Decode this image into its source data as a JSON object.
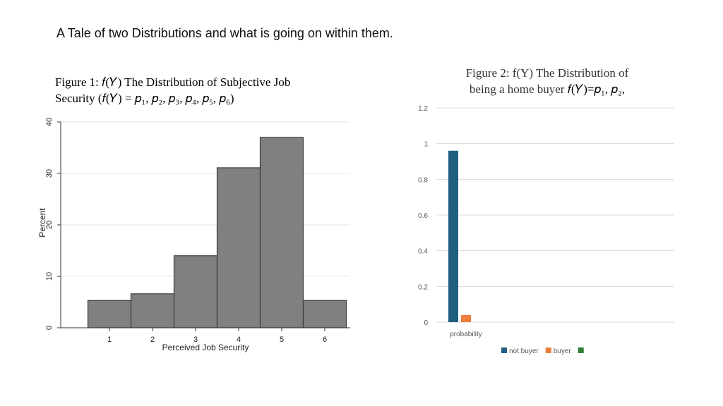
{
  "slide": {
    "title": "A Tale of two Distributions and what is going on within them."
  },
  "figure1": {
    "caption_line1": "Figure 1: 𝑓(𝑌) The Distribution of Subjective Job",
    "caption_line2": "Security (𝑓(𝑌) = 𝑝₁, 𝑝₂, 𝑝₃, 𝑝₄, 𝑝₅, 𝑝₆)"
  },
  "figure2": {
    "caption_line1": "Figure 2: f(Y) The Distribution of",
    "caption_line2_text": "being a home buyer ",
    "caption_line2_math": "𝑓(𝑌)=𝑝₁, 𝑝₂,"
  },
  "chart_data": [
    {
      "type": "bar",
      "categories": [
        "1",
        "2",
        "3",
        "4",
        "5",
        "6"
      ],
      "values": [
        5.3,
        6.6,
        14.0,
        31.1,
        37.0,
        5.3
      ],
      "xlabel": "Perceived Job Security",
      "ylabel": "Percent",
      "ylim": [
        0,
        40
      ],
      "yticks": [
        "0",
        "10",
        "20",
        "30",
        "40"
      ],
      "grid": true,
      "colors": {
        "bar": "#808080",
        "bar_edge": "#3c3c3c"
      }
    },
    {
      "type": "bar",
      "categories": [
        "probability"
      ],
      "series": [
        {
          "name": "not buyer",
          "values": [
            0.96
          ],
          "color": "#1f5f80"
        },
        {
          "name": "buyer",
          "values": [
            0.04
          ],
          "color": "#ee7c3a"
        },
        {
          "name": "",
          "values": [
            0
          ],
          "color": "#2e7d32"
        }
      ],
      "ylim": [
        0,
        1.2
      ],
      "yticks": [
        "0",
        "0.2",
        "0.4",
        "0.6",
        "0.8",
        "1",
        "1.2"
      ],
      "grid": true,
      "legend": "bottom"
    }
  ]
}
